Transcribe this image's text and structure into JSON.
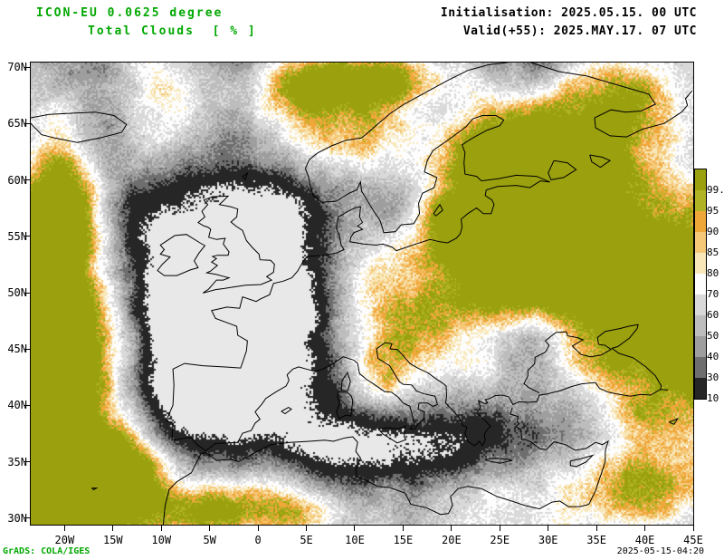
{
  "header": {
    "model_line": "ICON-EU 0.0625 degree",
    "variable_line": "Total Clouds  [ % ]",
    "init_line": "Initialisation: 2025.05.15. 00 UTC",
    "valid_line": "Valid(+55): 2025.MAY.17. 07 UTC"
  },
  "footer": {
    "credit": "GrADS: COLA/IGES",
    "timestamp": "2025-05-15-04:20"
  },
  "axes": {
    "lat_labels": [
      "70N",
      "65N",
      "60N",
      "55N",
      "50N",
      "45N",
      "40N",
      "35N",
      "30N"
    ],
    "lon_labels": [
      "20W",
      "15W",
      "10W",
      "5W",
      "0",
      "5E",
      "10E",
      "15E",
      "20E",
      "25E",
      "30E",
      "35E",
      "40E",
      "45E"
    ]
  },
  "legend": {
    "labels": [
      "99.5",
      "95",
      "90",
      "85",
      "80",
      "70",
      "60",
      "50",
      "40",
      "30",
      "10"
    ],
    "colors_top_to_bottom": [
      "#9aa00e",
      "#b0b324",
      "#f0a73a",
      "#f5c878",
      "#f8e7b8",
      "#fdfdfd",
      "#d9d9d9",
      "#bdbdbd",
      "#9e9e9e",
      "#6e6e6e",
      "#262626"
    ]
  },
  "map": {
    "clear_color": "#e8e8e8",
    "coast_color": "#000000",
    "text_green": "#00a800"
  },
  "chart_data": {
    "type": "heatmap",
    "title": "Total Clouds [ % ]",
    "model": "ICON-EU 0.0625 degree",
    "initialisation": "2025.05.15. 00 UTC",
    "valid": "2025.MAY.17. 07 UTC",
    "lead_hours": 55,
    "lon_range": [
      -23.5,
      45
    ],
    "lat_range": [
      29.5,
      70.5
    ],
    "levels_percent": [
      10,
      30,
      40,
      50,
      60,
      70,
      80,
      85,
      90,
      95,
      99.5
    ],
    "palette_low_to_high": [
      "#262626",
      "#6e6e6e",
      "#9e9e9e",
      "#bdbdbd",
      "#d9d9d9",
      "#fdfdfd",
      "#f8e7b8",
      "#f5c878",
      "#f0a73a",
      "#b0b324",
      "#9aa00e"
    ],
    "below_min_color": "#e8e8e8",
    "overcast_regions": [
      "eastern Europe / western Russia",
      "far western Atlantic edge",
      "NW Africa",
      "Scandinavia",
      "Middle East (southeast corner)"
    ],
    "clear_regions": [
      "France / southern UK / Bay of Biscay",
      "Iberia",
      "central Mediterranean"
    ]
  }
}
